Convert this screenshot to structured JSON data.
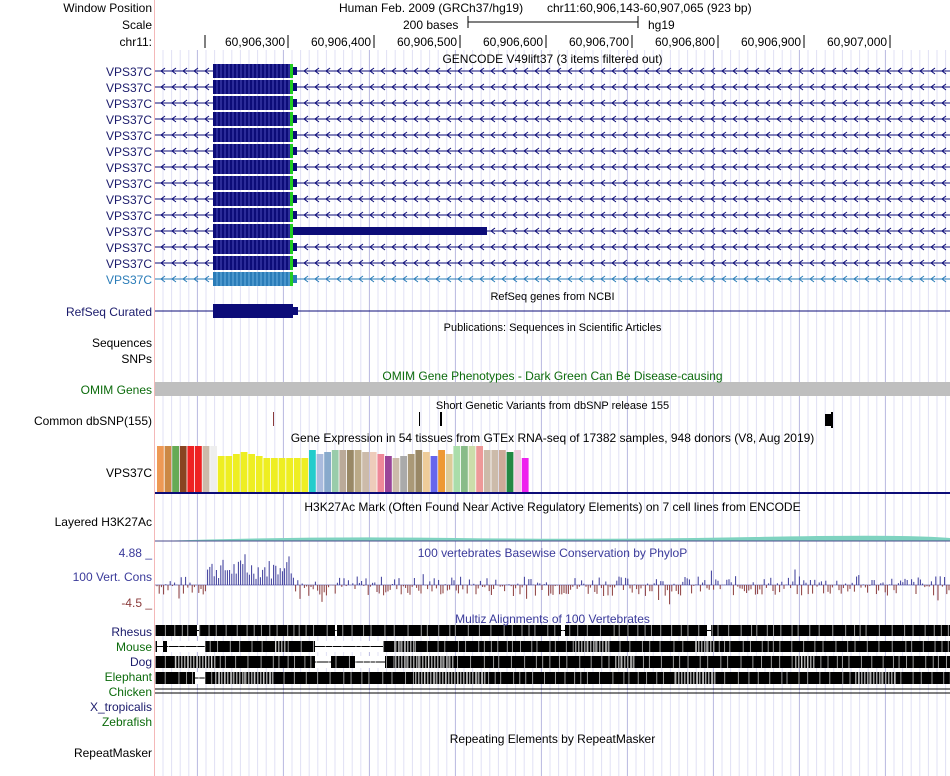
{
  "header": {
    "window_position_label": "Window Position",
    "scale_label": "Scale",
    "chrom_label": "chr11:",
    "assembly": "Human Feb. 2009 (GRCh37/hg19)",
    "position": "chr11:60,906,143-60,907,065 (923 bp)",
    "scale_text": "200 bases",
    "db": "hg19",
    "ticks": [
      "60,906,300",
      "60,906,400",
      "60,906,500",
      "60,906,600",
      "60,906,700",
      "60,906,800",
      "60,906,900",
      "60,907,000"
    ]
  },
  "gencode": {
    "title": "GENCODE V49lift37 (3 items filtered out)",
    "items": [
      "VPS37C",
      "VPS37C",
      "VPS37C",
      "VPS37C",
      "VPS37C",
      "VPS37C",
      "VPS37C",
      "VPS37C",
      "VPS37C",
      "VPS37C",
      "VPS37C",
      "VPS37C",
      "VPS37C",
      "VPS37C"
    ],
    "color_dark": "#0c0c78",
    "color_light": "#2a7cb8"
  },
  "refseq": {
    "label": "RefSeq Curated",
    "title": "RefSeq genes from NCBI"
  },
  "publications": {
    "title": "Publications: Sequences in Scientific Articles"
  },
  "sequences": {
    "label": "Sequences"
  },
  "snps": {
    "label": "SNPs"
  },
  "omim": {
    "label": "OMIM Genes",
    "title": "OMIM Gene Phenotypes - Dark Green Can Be Disease-causing",
    "color": "#0c6b0c"
  },
  "dbsnp": {
    "label": "Common dbSNP(155)",
    "title": "Short Genetic Variants from dbSNP release 155"
  },
  "gtex": {
    "label": "VPS37C",
    "title": "Gene Expression in 54 tissues from GTEx RNA-seq of 17382 samples, 948 donors (V8, Aug 2019)"
  },
  "h3k27ac": {
    "label": "Layered H3K27Ac",
    "title": "H3K27Ac Mark (Often Found Near Active Regulatory Elements) on 7 cell lines from ENCODE"
  },
  "phylop": {
    "label": "100 Vert. Cons",
    "max": "4.88 _",
    "min": "-4.5 _",
    "title": "100 vertebrates Basewise Conservation by PhyloP",
    "color_pos": "#3a3a9a",
    "color_neg": "#8a3a3a"
  },
  "multiz": {
    "title": "Multiz Alignments of 100 Vertebrates",
    "species": [
      {
        "name": "Rhesus",
        "color": "#1a1a6b"
      },
      {
        "name": "Mouse",
        "color": "#0c6b0c"
      },
      {
        "name": "Dog",
        "color": "#1a1a6b"
      },
      {
        "name": "Elephant",
        "color": "#0c6b0c"
      },
      {
        "name": "Chicken",
        "color": "#0c6b0c"
      },
      {
        "name": "X_tropicalis",
        "color": "#1a1a6b"
      },
      {
        "name": "Zebrafish",
        "color": "#0c6b0c"
      }
    ]
  },
  "repeatmasker": {
    "label": "RepeatMasker",
    "title": "Repeating Elements by RepeatMasker"
  }
}
